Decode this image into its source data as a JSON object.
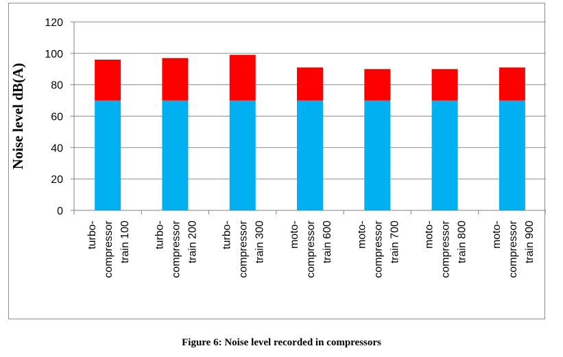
{
  "caption": "Figure 6: Noise level recorded in compressors",
  "chart_data": {
    "type": "bar",
    "stacked": true,
    "title": "",
    "xlabel": "",
    "ylabel": "Noise level dB(A)",
    "ylim": [
      0,
      120
    ],
    "yticks": [
      0,
      20,
      40,
      60,
      80,
      100,
      120
    ],
    "grid": true,
    "legend": "none",
    "categories": [
      [
        "turbo-",
        "compressor",
        "train 100"
      ],
      [
        "turbo-",
        "compressor",
        "train 200"
      ],
      [
        "turbo-",
        "compressor",
        "train 300"
      ],
      [
        "moto-",
        "compressor",
        "train 600"
      ],
      [
        "moto-",
        "compressor",
        "train 700"
      ],
      [
        "moto-",
        "compressor",
        "train 800"
      ],
      [
        "moto-",
        "compressor",
        "train 900"
      ]
    ],
    "series": [
      {
        "values": [
          70,
          70,
          70,
          70,
          70,
          70,
          70
        ],
        "color": "#00b0f0"
      },
      {
        "values": [
          26,
          27,
          29,
          21,
          20,
          20,
          21
        ],
        "color": "#ff0000"
      }
    ],
    "axis_color": "#808080",
    "grid_color": "#8c8c8c"
  }
}
